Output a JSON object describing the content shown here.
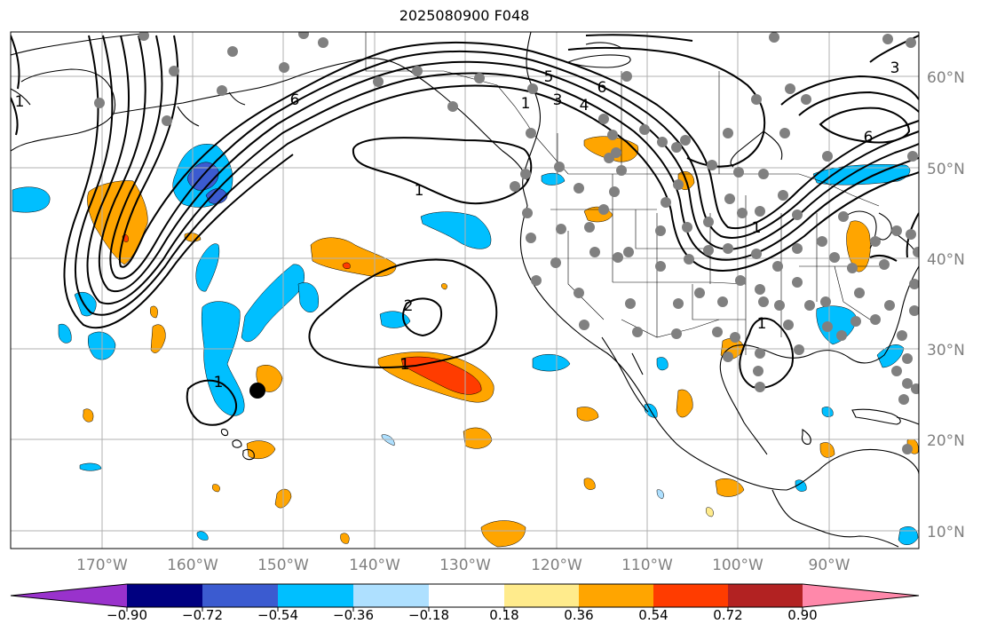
{
  "title": "2025080900 F048",
  "lon_labels": [
    "170°W",
    "160°W",
    "150°W",
    "140°W",
    "130°W",
    "120°W",
    "110°W",
    "100°W",
    "90°W"
  ],
  "lat_labels": [
    "60°N",
    "50°N",
    "40°N",
    "30°N",
    "20°N",
    "10°N"
  ],
  "contour_labels": [
    {
      "text": "1",
      "near": "northwest"
    },
    {
      "text": "6",
      "near": "gulf-of-alaska"
    },
    {
      "text": "5",
      "near": "canada"
    },
    {
      "text": "3",
      "near": "canada"
    },
    {
      "text": "4",
      "near": "canada"
    },
    {
      "text": "6",
      "near": "canada"
    },
    {
      "text": "1",
      "near": "canada"
    },
    {
      "text": "3",
      "near": "hudson-bay"
    },
    {
      "text": "6",
      "near": "hudson-bay"
    },
    {
      "text": "1",
      "near": "northeast-pacific"
    },
    {
      "text": "2",
      "near": "central-pacific"
    },
    {
      "text": "1",
      "near": "subtropical-pacific"
    },
    {
      "text": "1",
      "near": "hawaii"
    },
    {
      "text": "1",
      "near": "great-plains"
    },
    {
      "text": "1",
      "near": "gulf-of-mexico"
    }
  ],
  "colorbar": {
    "ticks": [
      "−0.90",
      "−0.72",
      "−0.54",
      "−0.36",
      "−0.18",
      "0.18",
      "0.36",
      "0.54",
      "0.72",
      "0.90"
    ],
    "colors": [
      "#9932cc",
      "#000080",
      "#3b5bd0",
      "#00bfff",
      "#aee0ff",
      "#ffffff",
      "#ffeb8c",
      "#ffa500",
      "#ff3c00",
      "#b22222",
      "#ff88aa"
    ]
  },
  "colors": {
    "grid": "#b0b0b0",
    "station": "#808080",
    "neg_light": "#aee0ff",
    "neg_mid": "#00bfff",
    "neg_dark": "#3b5bd0",
    "pos_light": "#ffeb8c",
    "pos_mid": "#ffa500",
    "pos_dark": "#ff3c00"
  }
}
